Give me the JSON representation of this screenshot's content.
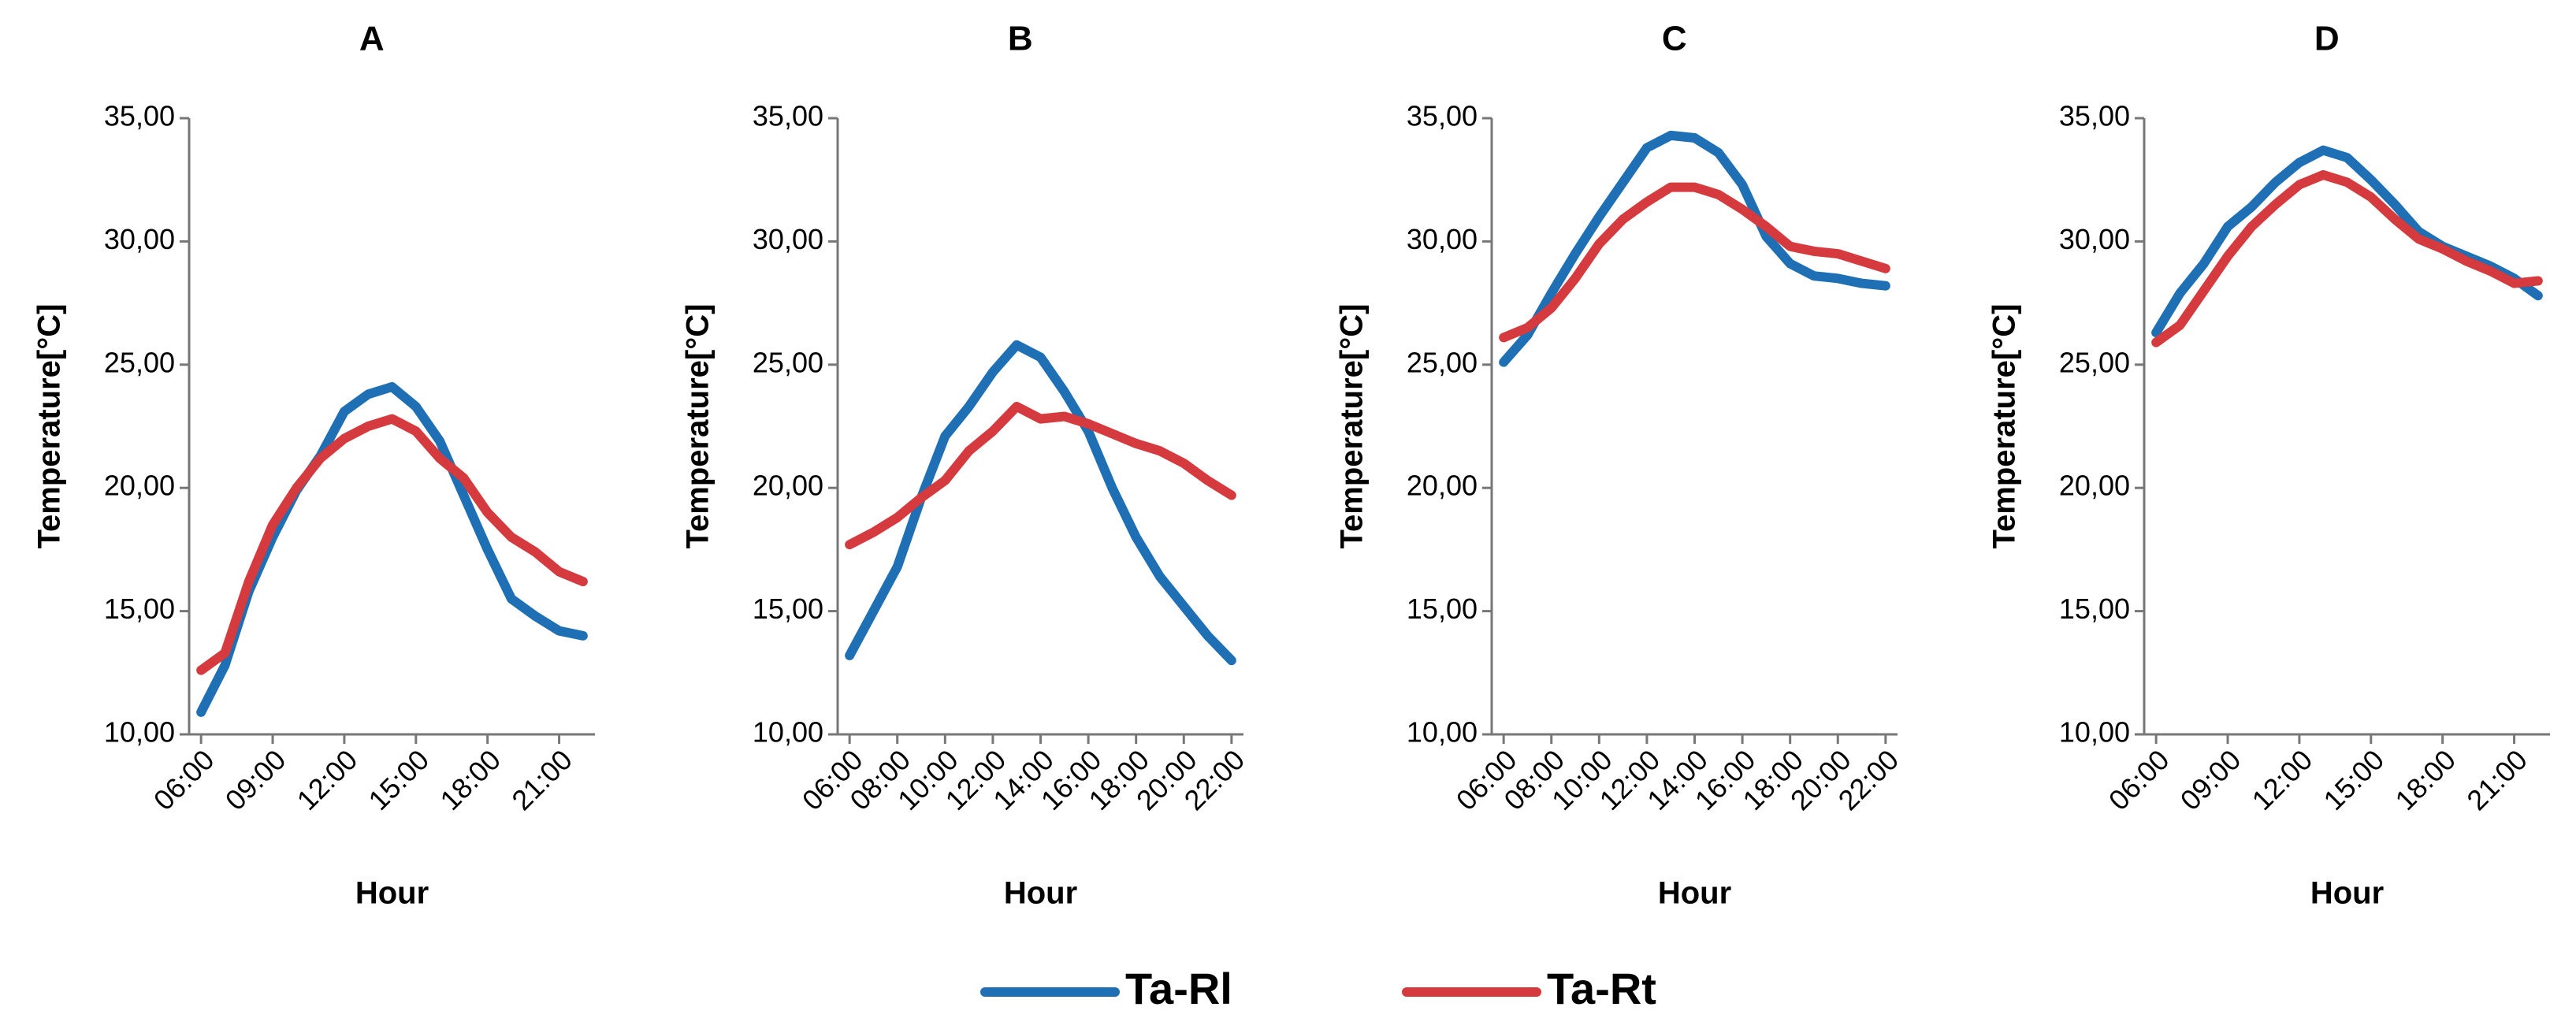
{
  "chart_data": [
    {
      "type": "line",
      "title": "A",
      "xlabel": "Hour",
      "ylabel": "Temperature[°C]",
      "x": [
        6,
        7,
        8,
        9,
        10,
        11,
        12,
        13,
        14,
        15,
        16,
        17,
        18,
        19,
        20,
        21,
        22
      ],
      "xlim": [
        5.5,
        22.5
      ],
      "xticks": [
        {
          "value": 6,
          "label": "06:00"
        },
        {
          "value": 9,
          "label": "09:00"
        },
        {
          "value": 12,
          "label": "12:00"
        },
        {
          "value": 15,
          "label": "15:00"
        },
        {
          "value": 18,
          "label": "18:00"
        },
        {
          "value": 21,
          "label": "21:00"
        }
      ],
      "ylim": [
        10,
        35
      ],
      "yticks": [
        {
          "value": 10,
          "label": "10,00"
        },
        {
          "value": 15,
          "label": "15,00"
        },
        {
          "value": 20,
          "label": "20,00"
        },
        {
          "value": 25,
          "label": "25,00"
        },
        {
          "value": 30,
          "label": "30,00"
        },
        {
          "value": 35,
          "label": "35,00"
        }
      ],
      "series": [
        {
          "name": "Ta-Rl",
          "color": "#1f6fb4",
          "values": [
            10.9,
            12.8,
            15.8,
            18.0,
            19.9,
            21.3,
            23.1,
            23.8,
            24.1,
            23.3,
            21.9,
            19.7,
            17.5,
            15.5,
            14.8,
            14.2,
            14.0
          ]
        },
        {
          "name": "Ta-Rt",
          "color": "#d43a3e",
          "values": [
            12.6,
            13.3,
            16.2,
            18.5,
            20.0,
            21.2,
            22.0,
            22.5,
            22.8,
            22.3,
            21.2,
            20.4,
            19.0,
            18.0,
            17.4,
            16.6,
            16.2
          ]
        }
      ]
    },
    {
      "type": "line",
      "title": "B",
      "xlabel": "Hour",
      "ylabel": "Temperature[°C]",
      "x": [
        6,
        7,
        8,
        9,
        10,
        11,
        12,
        13,
        14,
        15,
        16,
        17,
        18,
        19,
        20,
        21,
        22
      ],
      "xlim": [
        5.5,
        22.5
      ],
      "xticks": [
        {
          "value": 6,
          "label": "06:00"
        },
        {
          "value": 8,
          "label": "08:00"
        },
        {
          "value": 10,
          "label": "10:00"
        },
        {
          "value": 12,
          "label": "12:00"
        },
        {
          "value": 14,
          "label": "14:00"
        },
        {
          "value": 16,
          "label": "16:00"
        },
        {
          "value": 18,
          "label": "18:00"
        },
        {
          "value": 20,
          "label": "20:00"
        },
        {
          "value": 22,
          "label": "22:00"
        }
      ],
      "ylim": [
        10,
        35
      ],
      "yticks": [
        {
          "value": 10,
          "label": "10,00"
        },
        {
          "value": 15,
          "label": "15,00"
        },
        {
          "value": 20,
          "label": "20,00"
        },
        {
          "value": 25,
          "label": "25,00"
        },
        {
          "value": 30,
          "label": "30,00"
        },
        {
          "value": 35,
          "label": "35,00"
        }
      ],
      "series": [
        {
          "name": "Ta-Rl",
          "color": "#1f6fb4",
          "values": [
            13.2,
            15.0,
            16.8,
            19.6,
            22.1,
            23.3,
            24.7,
            25.8,
            25.3,
            23.9,
            22.3,
            20.0,
            18.0,
            16.4,
            15.2,
            14.0,
            13.0
          ]
        },
        {
          "name": "Ta-Rt",
          "color": "#d43a3e",
          "values": [
            17.7,
            18.2,
            18.8,
            19.6,
            20.3,
            21.5,
            22.3,
            23.3,
            22.8,
            22.9,
            22.6,
            22.2,
            21.8,
            21.5,
            21.0,
            20.3,
            19.7
          ]
        }
      ]
    },
    {
      "type": "line",
      "title": "C",
      "xlabel": "Hour",
      "ylabel": "Temperature[°C]",
      "x": [
        6,
        7,
        8,
        9,
        10,
        11,
        12,
        13,
        14,
        15,
        16,
        17,
        18,
        19,
        20,
        21,
        22
      ],
      "xlim": [
        5.5,
        22.5
      ],
      "xticks": [
        {
          "value": 6,
          "label": "06:00"
        },
        {
          "value": 8,
          "label": "08:00"
        },
        {
          "value": 10,
          "label": "10:00"
        },
        {
          "value": 12,
          "label": "12:00"
        },
        {
          "value": 14,
          "label": "14:00"
        },
        {
          "value": 16,
          "label": "16:00"
        },
        {
          "value": 18,
          "label": "18:00"
        },
        {
          "value": 20,
          "label": "20:00"
        },
        {
          "value": 22,
          "label": "22:00"
        }
      ],
      "ylim": [
        10,
        35
      ],
      "yticks": [
        {
          "value": 10,
          "label": "10,00"
        },
        {
          "value": 15,
          "label": "15,00"
        },
        {
          "value": 20,
          "label": "20,00"
        },
        {
          "value": 25,
          "label": "25,00"
        },
        {
          "value": 30,
          "label": "30,00"
        },
        {
          "value": 35,
          "label": "35,00"
        }
      ],
      "series": [
        {
          "name": "Ta-Rl",
          "color": "#1f6fb4",
          "values": [
            25.1,
            26.2,
            27.9,
            29.5,
            31.0,
            32.4,
            33.8,
            34.3,
            34.2,
            33.6,
            32.3,
            30.2,
            29.1,
            28.6,
            28.5,
            28.3,
            28.2
          ]
        },
        {
          "name": "Ta-Rt",
          "color": "#d43a3e",
          "values": [
            26.1,
            26.5,
            27.3,
            28.5,
            29.9,
            30.9,
            31.6,
            32.2,
            32.2,
            31.9,
            31.3,
            30.6,
            29.8,
            29.6,
            29.5,
            29.2,
            28.9
          ]
        }
      ]
    },
    {
      "type": "line",
      "title": "D",
      "xlabel": "Hour",
      "ylabel": "Temperature[°C]",
      "x": [
        6,
        7,
        8,
        9,
        10,
        11,
        12,
        13,
        14,
        15,
        16,
        17,
        18,
        19,
        20,
        21,
        22
      ],
      "xlim": [
        5.5,
        22.5
      ],
      "xticks": [
        {
          "value": 6,
          "label": "06:00"
        },
        {
          "value": 9,
          "label": "09:00"
        },
        {
          "value": 12,
          "label": "12:00"
        },
        {
          "value": 15,
          "label": "15:00"
        },
        {
          "value": 18,
          "label": "18:00"
        },
        {
          "value": 21,
          "label": "21:00"
        }
      ],
      "ylim": [
        10,
        35
      ],
      "yticks": [
        {
          "value": 10,
          "label": "10,00"
        },
        {
          "value": 15,
          "label": "15,00"
        },
        {
          "value": 20,
          "label": "20,00"
        },
        {
          "value": 25,
          "label": "25,00"
        },
        {
          "value": 30,
          "label": "30,00"
        },
        {
          "value": 35,
          "label": "35,00"
        }
      ],
      "series": [
        {
          "name": "Ta-Rl",
          "color": "#1f6fb4",
          "values": [
            26.3,
            27.9,
            29.1,
            30.6,
            31.4,
            32.4,
            33.2,
            33.7,
            33.4,
            32.5,
            31.5,
            30.4,
            29.8,
            29.4,
            29.0,
            28.5,
            27.8
          ]
        },
        {
          "name": "Ta-Rt",
          "color": "#d43a3e",
          "values": [
            25.9,
            26.6,
            28.0,
            29.4,
            30.6,
            31.5,
            32.3,
            32.7,
            32.4,
            31.8,
            30.9,
            30.1,
            29.7,
            29.2,
            28.8,
            28.3,
            28.4
          ]
        }
      ]
    }
  ]
}
